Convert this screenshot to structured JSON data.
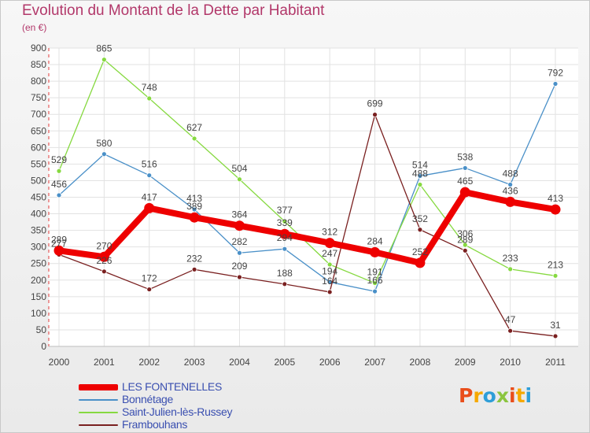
{
  "header": {
    "title": "Evolution du Montant de la Dette par Habitant",
    "subtitle": "(en €)"
  },
  "logo": {
    "text": "Proxiti",
    "colors": [
      "#e94e1b",
      "#f6a800",
      "#2e9ed8",
      "#8bc53f",
      "#e94e1b",
      "#f6a800",
      "#2e9ed8"
    ]
  },
  "chart_data": {
    "type": "line",
    "title": "Evolution du Montant de la Dette par Habitant",
    "subtitle": "(en €)",
    "xlabel": "",
    "ylabel": "",
    "ylim": [
      0,
      900
    ],
    "ytick_step": 50,
    "grid": true,
    "legend_position": "bottom-left",
    "categories": [
      "2000",
      "2001",
      "2002",
      "2003",
      "2004",
      "2005",
      "2006",
      "2007",
      "2008",
      "2009",
      "2010",
      "2011"
    ],
    "series": [
      {
        "name": "LES FONTENELLES",
        "color": "#ee0000",
        "values": [
          289,
          270,
          417,
          389,
          364,
          339,
          312,
          284,
          252,
          465,
          436,
          413
        ]
      },
      {
        "name": "Bonnétage",
        "color": "#4a90c8",
        "values": [
          456,
          580,
          516,
          413,
          282,
          294,
          194,
          166,
          514,
          538,
          488,
          792
        ]
      },
      {
        "name": "Saint-Julien-lès-Russey",
        "color": "#86d940",
        "values": [
          529,
          865,
          748,
          627,
          504,
          377,
          247,
          191,
          488,
          306,
          233,
          213
        ]
      },
      {
        "name": "Frambouhans",
        "color": "#7a2020",
        "values": [
          277,
          226,
          172,
          232,
          209,
          188,
          164,
          699,
          352,
          289,
          47,
          31
        ]
      }
    ]
  }
}
